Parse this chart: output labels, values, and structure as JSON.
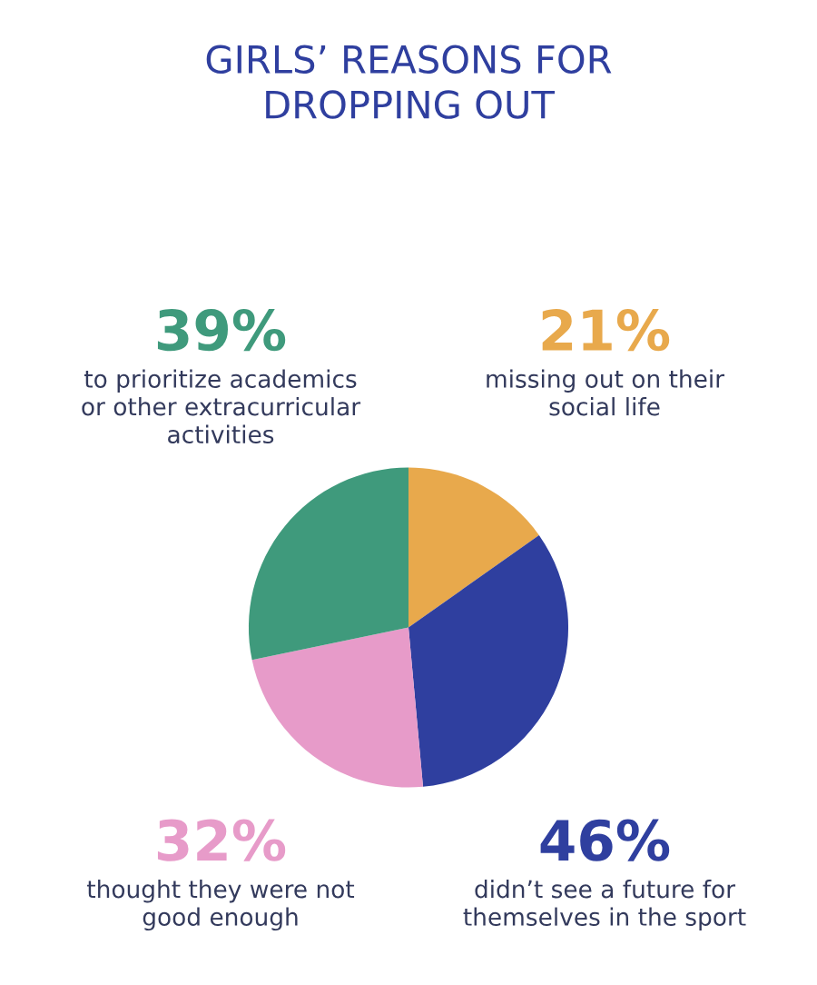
{
  "chart_data": {
    "type": "pie",
    "title": "GIRLS’ REASONS FOR\nDROPPING OUT",
    "categories": [
      "missing out on their\nsocial life",
      "didn’t see a future for\nthemselves in the sport",
      "thought they were not\ngood enough",
      "to prioritize academics\nor other extracurricular\nactivities"
    ],
    "values": [
      21,
      46,
      32,
      39
    ],
    "value_labels": [
      "21%",
      "46%",
      "32%",
      "39%"
    ],
    "colors": [
      "#e8a94c",
      "#2f3f9f",
      "#e79bc9",
      "#3f9a7c"
    ]
  }
}
